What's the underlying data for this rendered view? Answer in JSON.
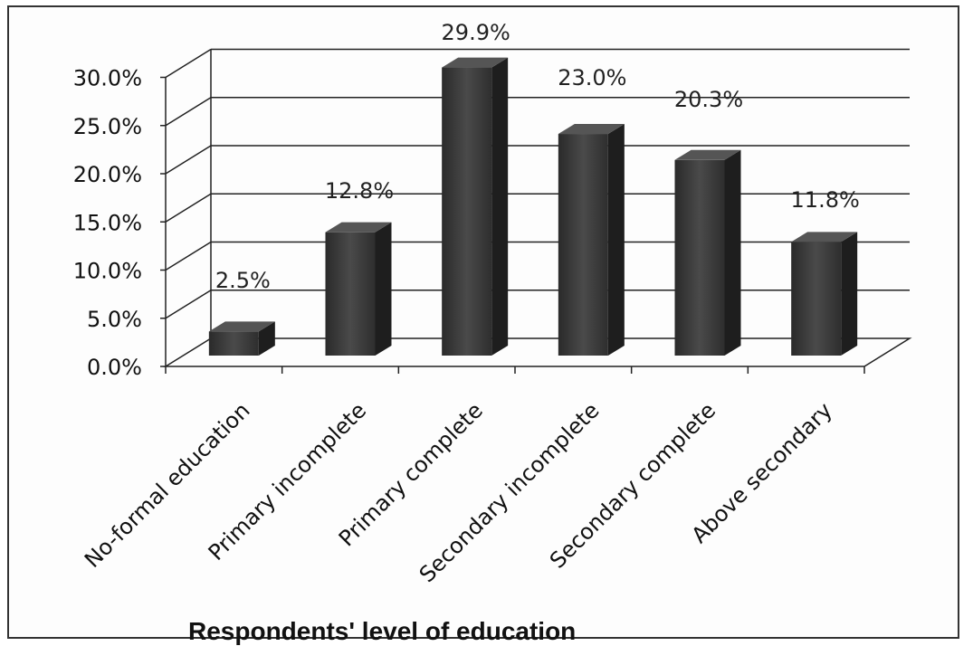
{
  "chart_data": {
    "type": "bar",
    "title": "",
    "xlabel": "Respondents' level of education",
    "ylabel": "",
    "categories": [
      "No-formal education",
      "Primary incomplete",
      "Primary  complete",
      "Secondary incomplete",
      "Secondary complete",
      "Above secondary"
    ],
    "values": [
      2.5,
      12.8,
      29.9,
      23.0,
      20.3,
      11.8
    ],
    "data_labels": [
      "2.5%",
      "12.8%",
      "29.9%",
      "23.0%",
      "20.3%",
      "11.8%"
    ],
    "y_ticks": [
      "0.0%",
      "5.0%",
      "10.0%",
      "15.0%",
      "20.0%",
      "25.0%",
      "30.0%"
    ],
    "ylim": [
      0,
      30
    ],
    "grid": true,
    "style": "3d-column",
    "colors": {
      "bar_front": "#3a3a3a",
      "bar_side": "#1e1e1e",
      "bar_top": "#555555",
      "grid": "#222222"
    }
  }
}
